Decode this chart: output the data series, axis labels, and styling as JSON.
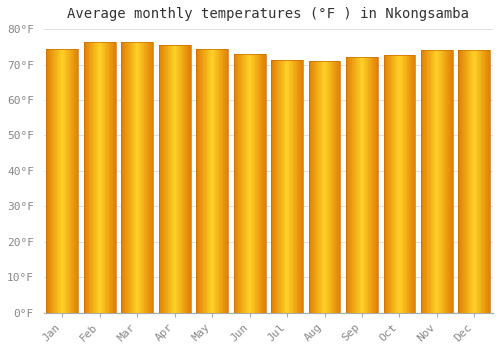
{
  "title": "Average monthly temperatures (°F ) in Nkongsamba",
  "months": [
    "Jan",
    "Feb",
    "Mar",
    "Apr",
    "May",
    "Jun",
    "Jul",
    "Aug",
    "Sep",
    "Oct",
    "Nov",
    "Dec"
  ],
  "values": [
    74.5,
    76.3,
    76.3,
    75.5,
    74.5,
    73.0,
    71.2,
    71.0,
    72.0,
    72.7,
    74.0,
    74.0
  ],
  "bar_color_center": "#FFD040",
  "bar_color_edge": "#E08000",
  "ylim": [
    0,
    80
  ],
  "yticks": [
    0,
    10,
    20,
    30,
    40,
    50,
    60,
    70,
    80
  ],
  "ytick_labels": [
    "0°F",
    "10°F",
    "20°F",
    "30°F",
    "40°F",
    "50°F",
    "60°F",
    "70°F",
    "80°F"
  ],
  "background_color": "#ffffff",
  "grid_color": "#e0e0e0",
  "title_fontsize": 10,
  "tick_fontsize": 8,
  "bar_width": 0.85,
  "n_gradient_strips": 40
}
